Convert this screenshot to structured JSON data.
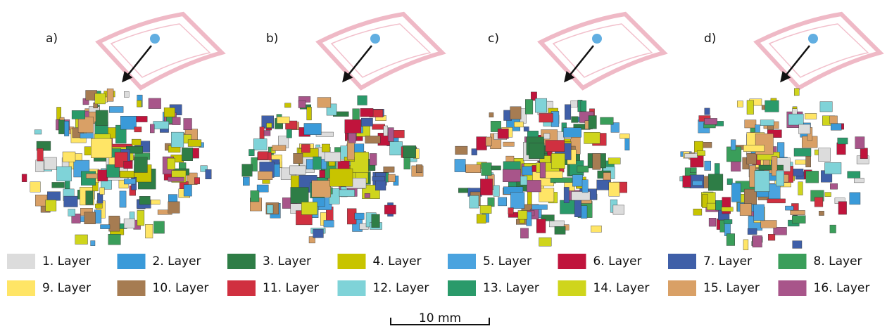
{
  "panels": [
    {
      "label": "a)"
    },
    {
      "label": "b)"
    },
    {
      "label": "c)"
    },
    {
      "label": "d)"
    }
  ],
  "legend": [
    {
      "label": "1. Layer",
      "color": "#dcdcdc"
    },
    {
      "label": "2. Layer",
      "color": "#3a9ad9"
    },
    {
      "label": "3. Layer",
      "color": "#2e7d46"
    },
    {
      "label": "4. Layer",
      "color": "#c8c400"
    },
    {
      "label": "5. Layer",
      "color": "#4aa3df"
    },
    {
      "label": "6. Layer",
      "color": "#c0143c"
    },
    {
      "label": "7. Layer",
      "color": "#3f5fa8"
    },
    {
      "label": "8. Layer",
      "color": "#3a9e5a"
    },
    {
      "label": "9. Layer",
      "color": "#ffe566"
    },
    {
      "label": "10. Layer",
      "color": "#a67c52"
    },
    {
      "label": "11. Layer",
      "color": "#d03040"
    },
    {
      "label": "12. Layer",
      "color": "#7fd3d8"
    },
    {
      "label": "13. Layer",
      "color": "#2a9a6a"
    },
    {
      "label": "14. Layer",
      "color": "#cfd51c"
    },
    {
      "label": "15. Layer",
      "color": "#d9a066"
    },
    {
      "label": "16. Layer",
      "color": "#a8558a"
    }
  ],
  "scale_bar": {
    "label": "10 mm"
  }
}
